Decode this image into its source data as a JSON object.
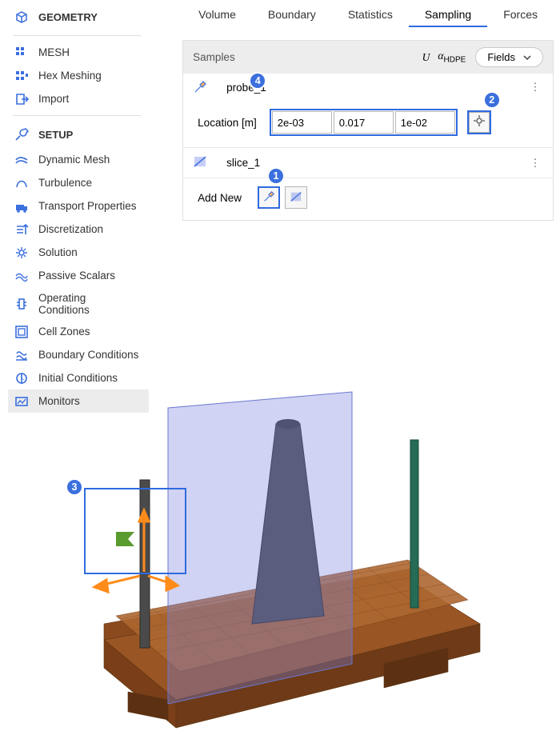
{
  "sidebar": {
    "geometry_label": "GEOMETRY",
    "mesh_label": "MESH",
    "hex_label": "Hex Meshing",
    "import_label": "Import",
    "setup_label": "SETUP",
    "items": [
      "Dynamic Mesh",
      "Turbulence",
      "Transport Properties",
      "Discretization",
      "Solution",
      "Passive Scalars",
      "Operating Conditions",
      "Cell Zones",
      "Boundary Conditions",
      "Initial Conditions",
      "Monitors"
    ],
    "selected_index": 10
  },
  "tabs": {
    "items": [
      "Volume",
      "Boundary",
      "Statistics",
      "Sampling",
      "Forces"
    ],
    "active": 3
  },
  "panel": {
    "title": "Samples",
    "u_sym": "U",
    "alpha_sym": "α",
    "alpha_sub": "HDPE",
    "fields_label": "Fields",
    "probe_name": "probe_1",
    "location_label": "Location [m]",
    "location": {
      "x": "2e-03",
      "y": "0.017",
      "z": "1e-02"
    },
    "slice_name": "slice_1",
    "add_new_label": "Add New"
  },
  "callouts": {
    "c1": "1",
    "c2": "2",
    "c3": "3",
    "c4": "4"
  },
  "colors": {
    "accent": "#3b6fde",
    "hl": "#2f6be0",
    "viewport_mesh": "#8b4a1e",
    "viewport_mesh_dark": "#6e3a17",
    "slice_plane": "rgba(120,130,220,0.35)",
    "slice_edge": "#6a77cf",
    "rod": "#4a4a4a",
    "rod_green": "#256b55",
    "arrow": "#ff8c1a",
    "flag": "#5a9b2f"
  }
}
